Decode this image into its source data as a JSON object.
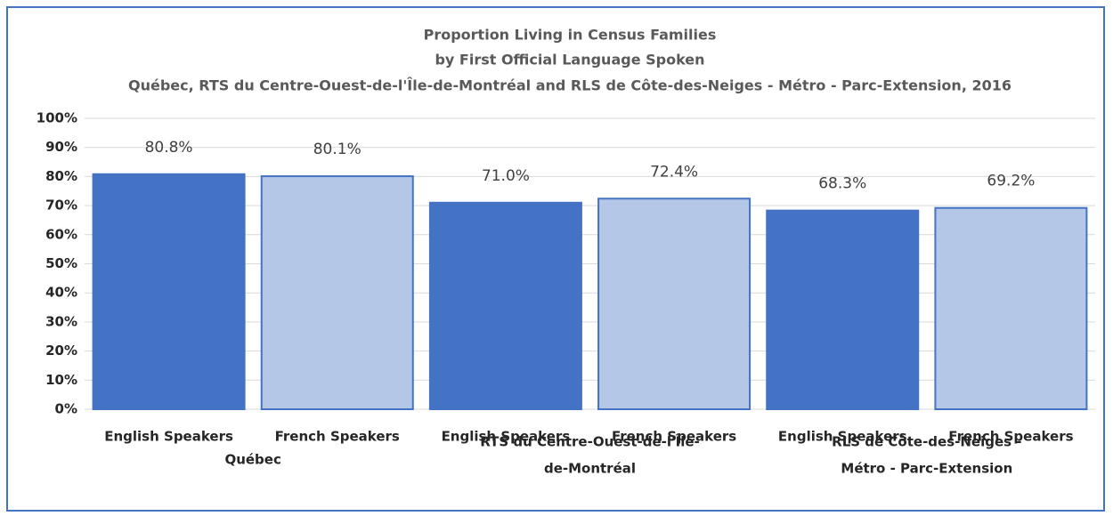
{
  "chart_data": {
    "type": "bar",
    "title": "Proportion Living in Census Families",
    "subtitle": "by First Official Language Spoken",
    "subtitle2": "Québec, RTS du Centre-Ouest-de-l'Île-de-Montréal and RLS de Côte-des-Neiges - Métro - Parc-Extension, 2016",
    "categories": [
      [
        "Québec"
      ],
      [
        "RTS du Centre-Ouest-de-l'Île-",
        "de-Montréal"
      ],
      [
        "RLS de Côte-des-Neiges -",
        "Métro - Parc-Extension"
      ]
    ],
    "series": [
      {
        "name": "English Speakers",
        "color": "#4472c4",
        "values": [
          80.8,
          71.0,
          68.3
        ],
        "value_labels": [
          "80.8%",
          "71.0%",
          "68.3%"
        ]
      },
      {
        "name": "French Speakers",
        "color": "#b4c7e7",
        "values": [
          80.1,
          72.4,
          69.2
        ],
        "value_labels": [
          "80.1%",
          "72.4%",
          "69.2%"
        ]
      }
    ],
    "ylim": [
      0,
      100
    ],
    "yticks": [
      {
        "value": 0,
        "label": "0%"
      },
      {
        "value": 10,
        "label": "10%"
      },
      {
        "value": 20,
        "label": "20%"
      },
      {
        "value": 30,
        "label": "30%"
      },
      {
        "value": 40,
        "label": "40%"
      },
      {
        "value": 50,
        "label": "50%"
      },
      {
        "value": 60,
        "label": "60%"
      },
      {
        "value": 70,
        "label": "70%"
      },
      {
        "value": 80,
        "label": "80%"
      },
      {
        "value": 90,
        "label": "90%"
      },
      {
        "value": 100,
        "label": "100%"
      }
    ],
    "grid": true
  }
}
